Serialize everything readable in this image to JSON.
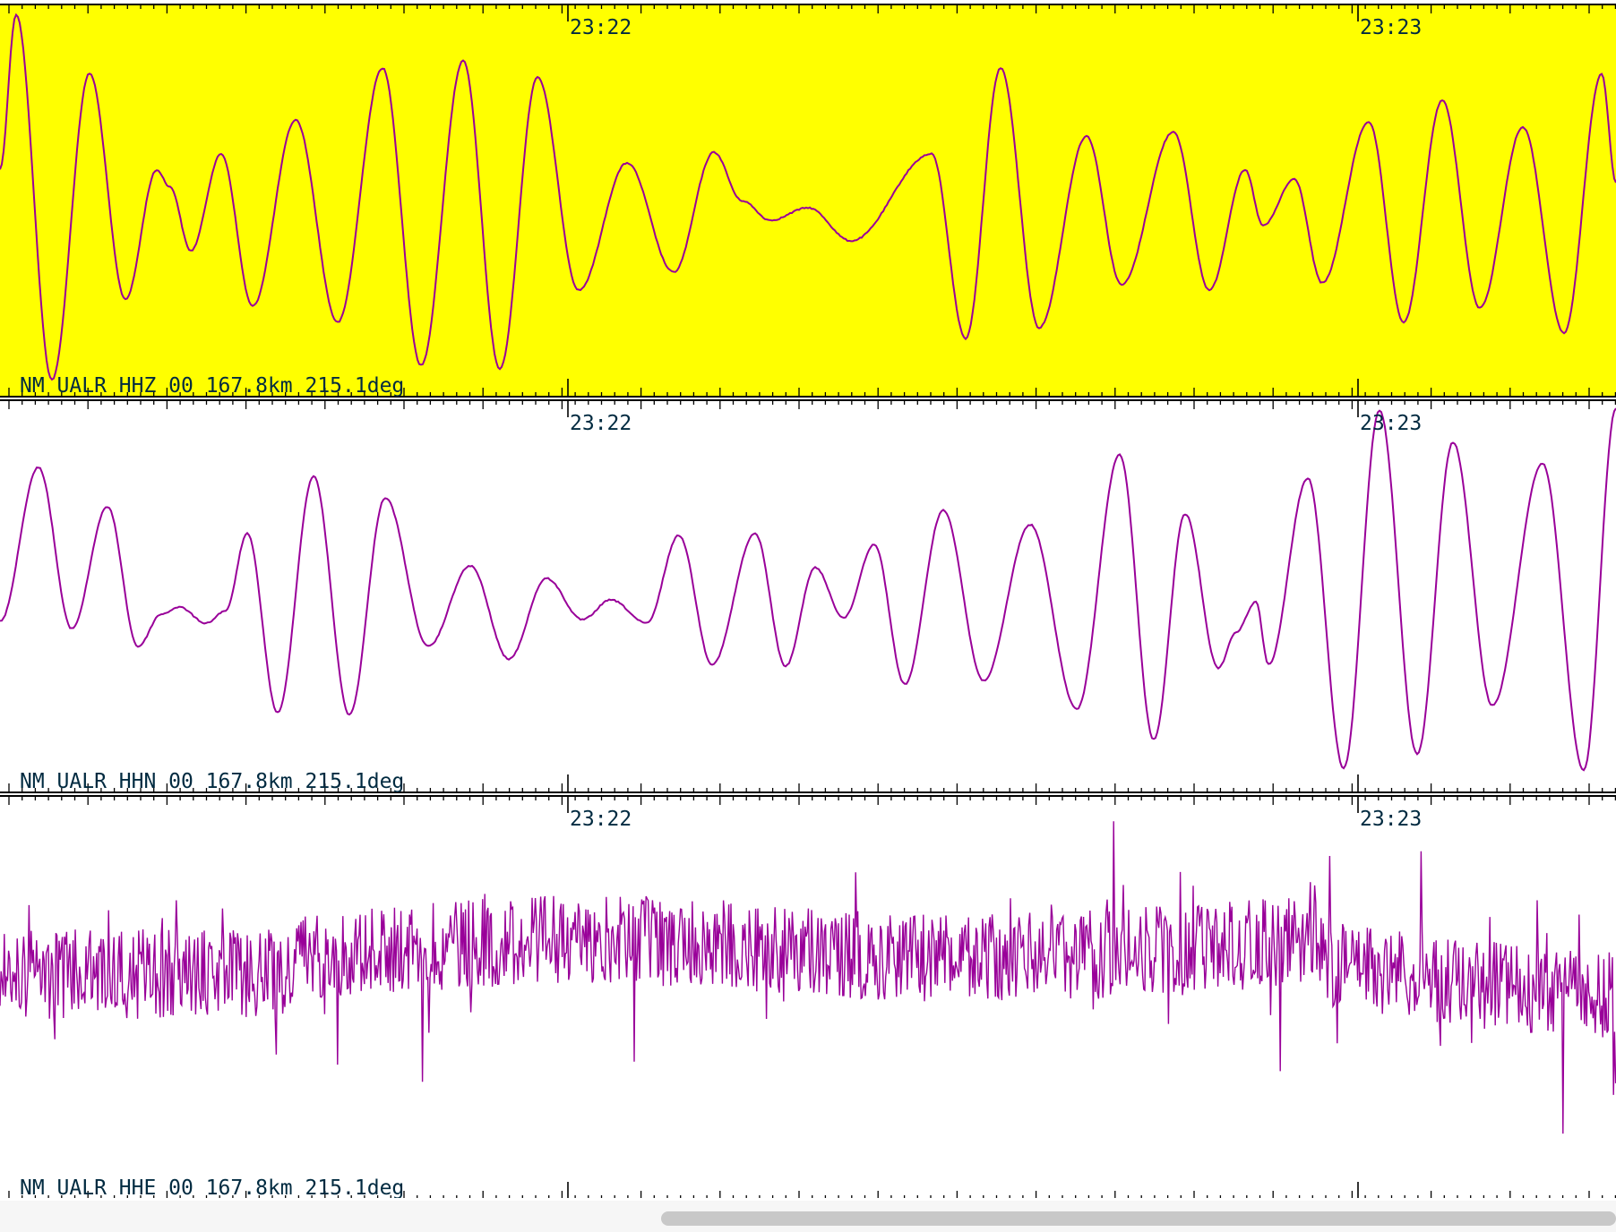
{
  "viewer": {
    "trace_color": "#990099",
    "selected_background": "#ffff00",
    "axis_color": "#000000",
    "label_color": "#002a40",
    "time_labels": [
      "23:22",
      "23:23"
    ],
    "traces": [
      {
        "label": "NM UALR HHZ 00 167.8km 215.1deg",
        "selected": true
      },
      {
        "label": "NM UALR HHN 00 167.8km 215.1deg",
        "selected": false
      },
      {
        "label": "NM UALR HHE 00 167.8km 215.1deg",
        "selected": false
      }
    ]
  }
}
